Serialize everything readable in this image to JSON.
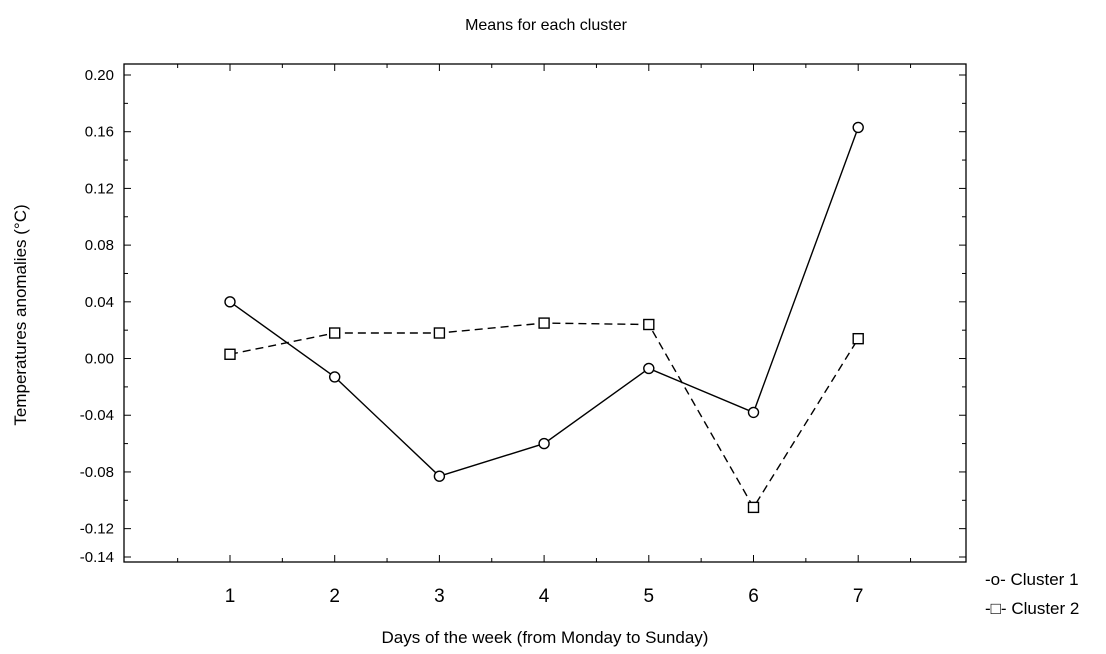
{
  "chart_data": {
    "type": "line",
    "title": "Means for each cluster",
    "xlabel": "Days of the week (from Monday to Sunday)",
    "ylabel": "Temperatures anomalies (°C)",
    "categories": [
      "1",
      "2",
      "3",
      "4",
      "5",
      "6",
      "7"
    ],
    "x": [
      1,
      2,
      3,
      4,
      5,
      6,
      7
    ],
    "xlim": [
      0,
      8
    ],
    "ylim": [
      -0.14,
      0.2
    ],
    "yticks": [
      0.2,
      0.16,
      0.12,
      0.08,
      0.04,
      0.0,
      -0.04,
      -0.08,
      -0.12,
      -0.14
    ],
    "ytick_labels": [
      "0.20",
      "0.16",
      "0.12",
      "0.08",
      "0.04",
      "0.00",
      "-0.04",
      "-0.08",
      "-0.12",
      "-0.14"
    ],
    "grid": false,
    "legend_position": "bottom-right outside",
    "series": [
      {
        "name": "Cluster 1",
        "legend_label": "-o- Cluster 1",
        "marker": "circle",
        "line_style": "solid",
        "color": "#000000",
        "values": [
          0.04,
          -0.013,
          -0.083,
          -0.06,
          -0.007,
          -0.038,
          0.163
        ]
      },
      {
        "name": "Cluster 2",
        "legend_label": "-□- Cluster 2",
        "marker": "square",
        "line_style": "dashed",
        "color": "#000000",
        "values": [
          0.003,
          0.018,
          0.018,
          0.025,
          0.024,
          -0.105,
          0.014
        ]
      }
    ]
  }
}
